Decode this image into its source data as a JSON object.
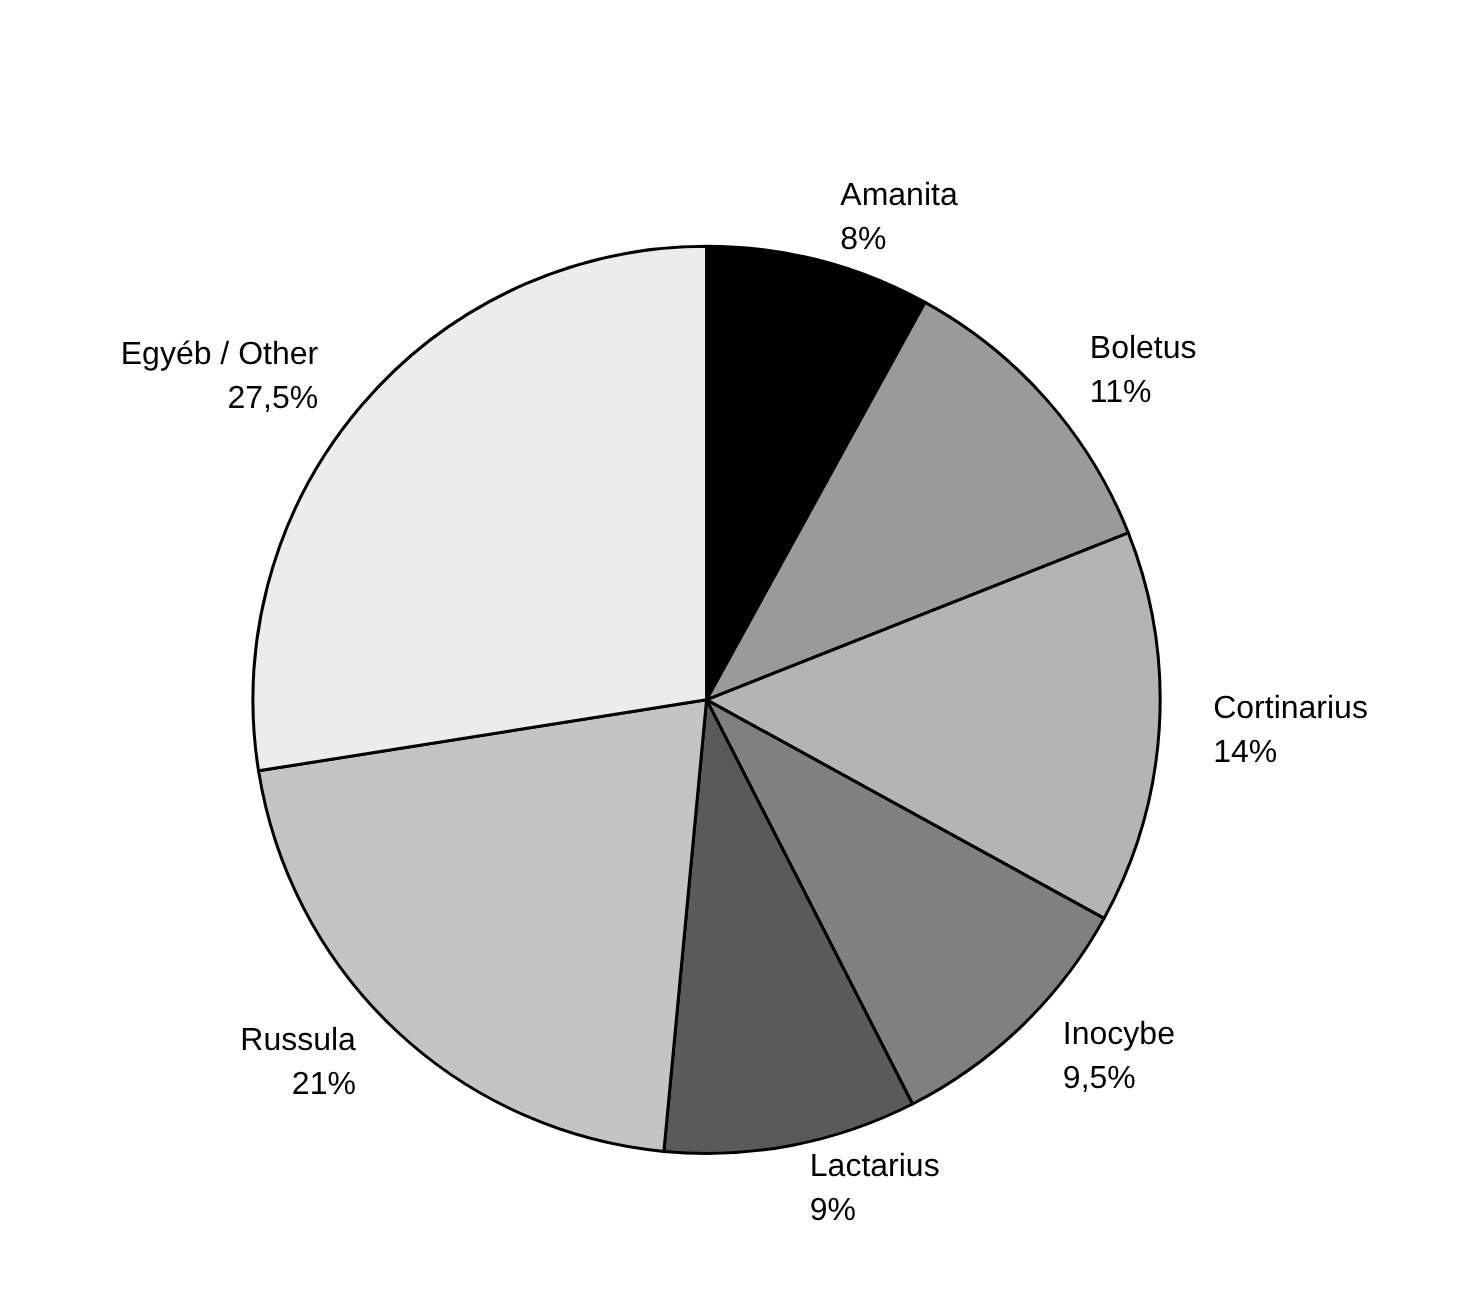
{
  "chart_data": {
    "type": "pie",
    "categories": [
      "Amanita",
      "Boletus",
      "Cortinarius",
      "Inocybe",
      "Lactarius",
      "Russula",
      "Egyéb / Other"
    ],
    "values": [
      8,
      11,
      14,
      9.5,
      9,
      21,
      27.5
    ],
    "value_labels": [
      "8%",
      "11%",
      "14%",
      "9,5%",
      "9%",
      "21%",
      "27,5%"
    ],
    "colors": [
      "#000000",
      "#9a9a9a",
      "#b4b4b4",
      "#808080",
      "#5a5a5a",
      "#c4c4c4",
      "#ececec"
    ]
  }
}
